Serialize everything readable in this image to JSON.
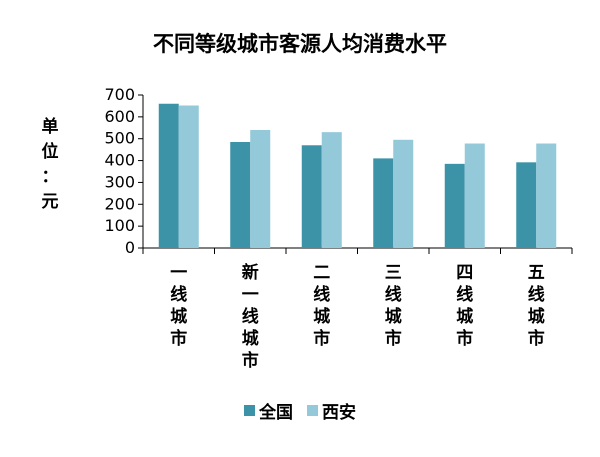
{
  "chart_data": {
    "type": "bar",
    "title": "不同等级城市客源人均消费水平",
    "ylabel": "单位：元",
    "ylabel_chars": [
      "单",
      "位",
      "：",
      "元"
    ],
    "categories": [
      "一线城市",
      "新一线城市",
      "二线城市",
      "三线城市",
      "四线城市",
      "五线城市"
    ],
    "series": [
      {
        "name": "全国",
        "color": "#3C93A8",
        "values": [
          660,
          485,
          470,
          410,
          385,
          392
        ]
      },
      {
        "name": "西安",
        "color": "#94C9D9",
        "values": [
          652,
          540,
          530,
          495,
          478,
          478
        ]
      }
    ],
    "ylim": [
      0,
      700
    ],
    "yticks": [
      "0",
      "100",
      "200",
      "300",
      "400",
      "500",
      "600",
      "700"
    ],
    "grid": false,
    "legend_position": "bottom"
  }
}
